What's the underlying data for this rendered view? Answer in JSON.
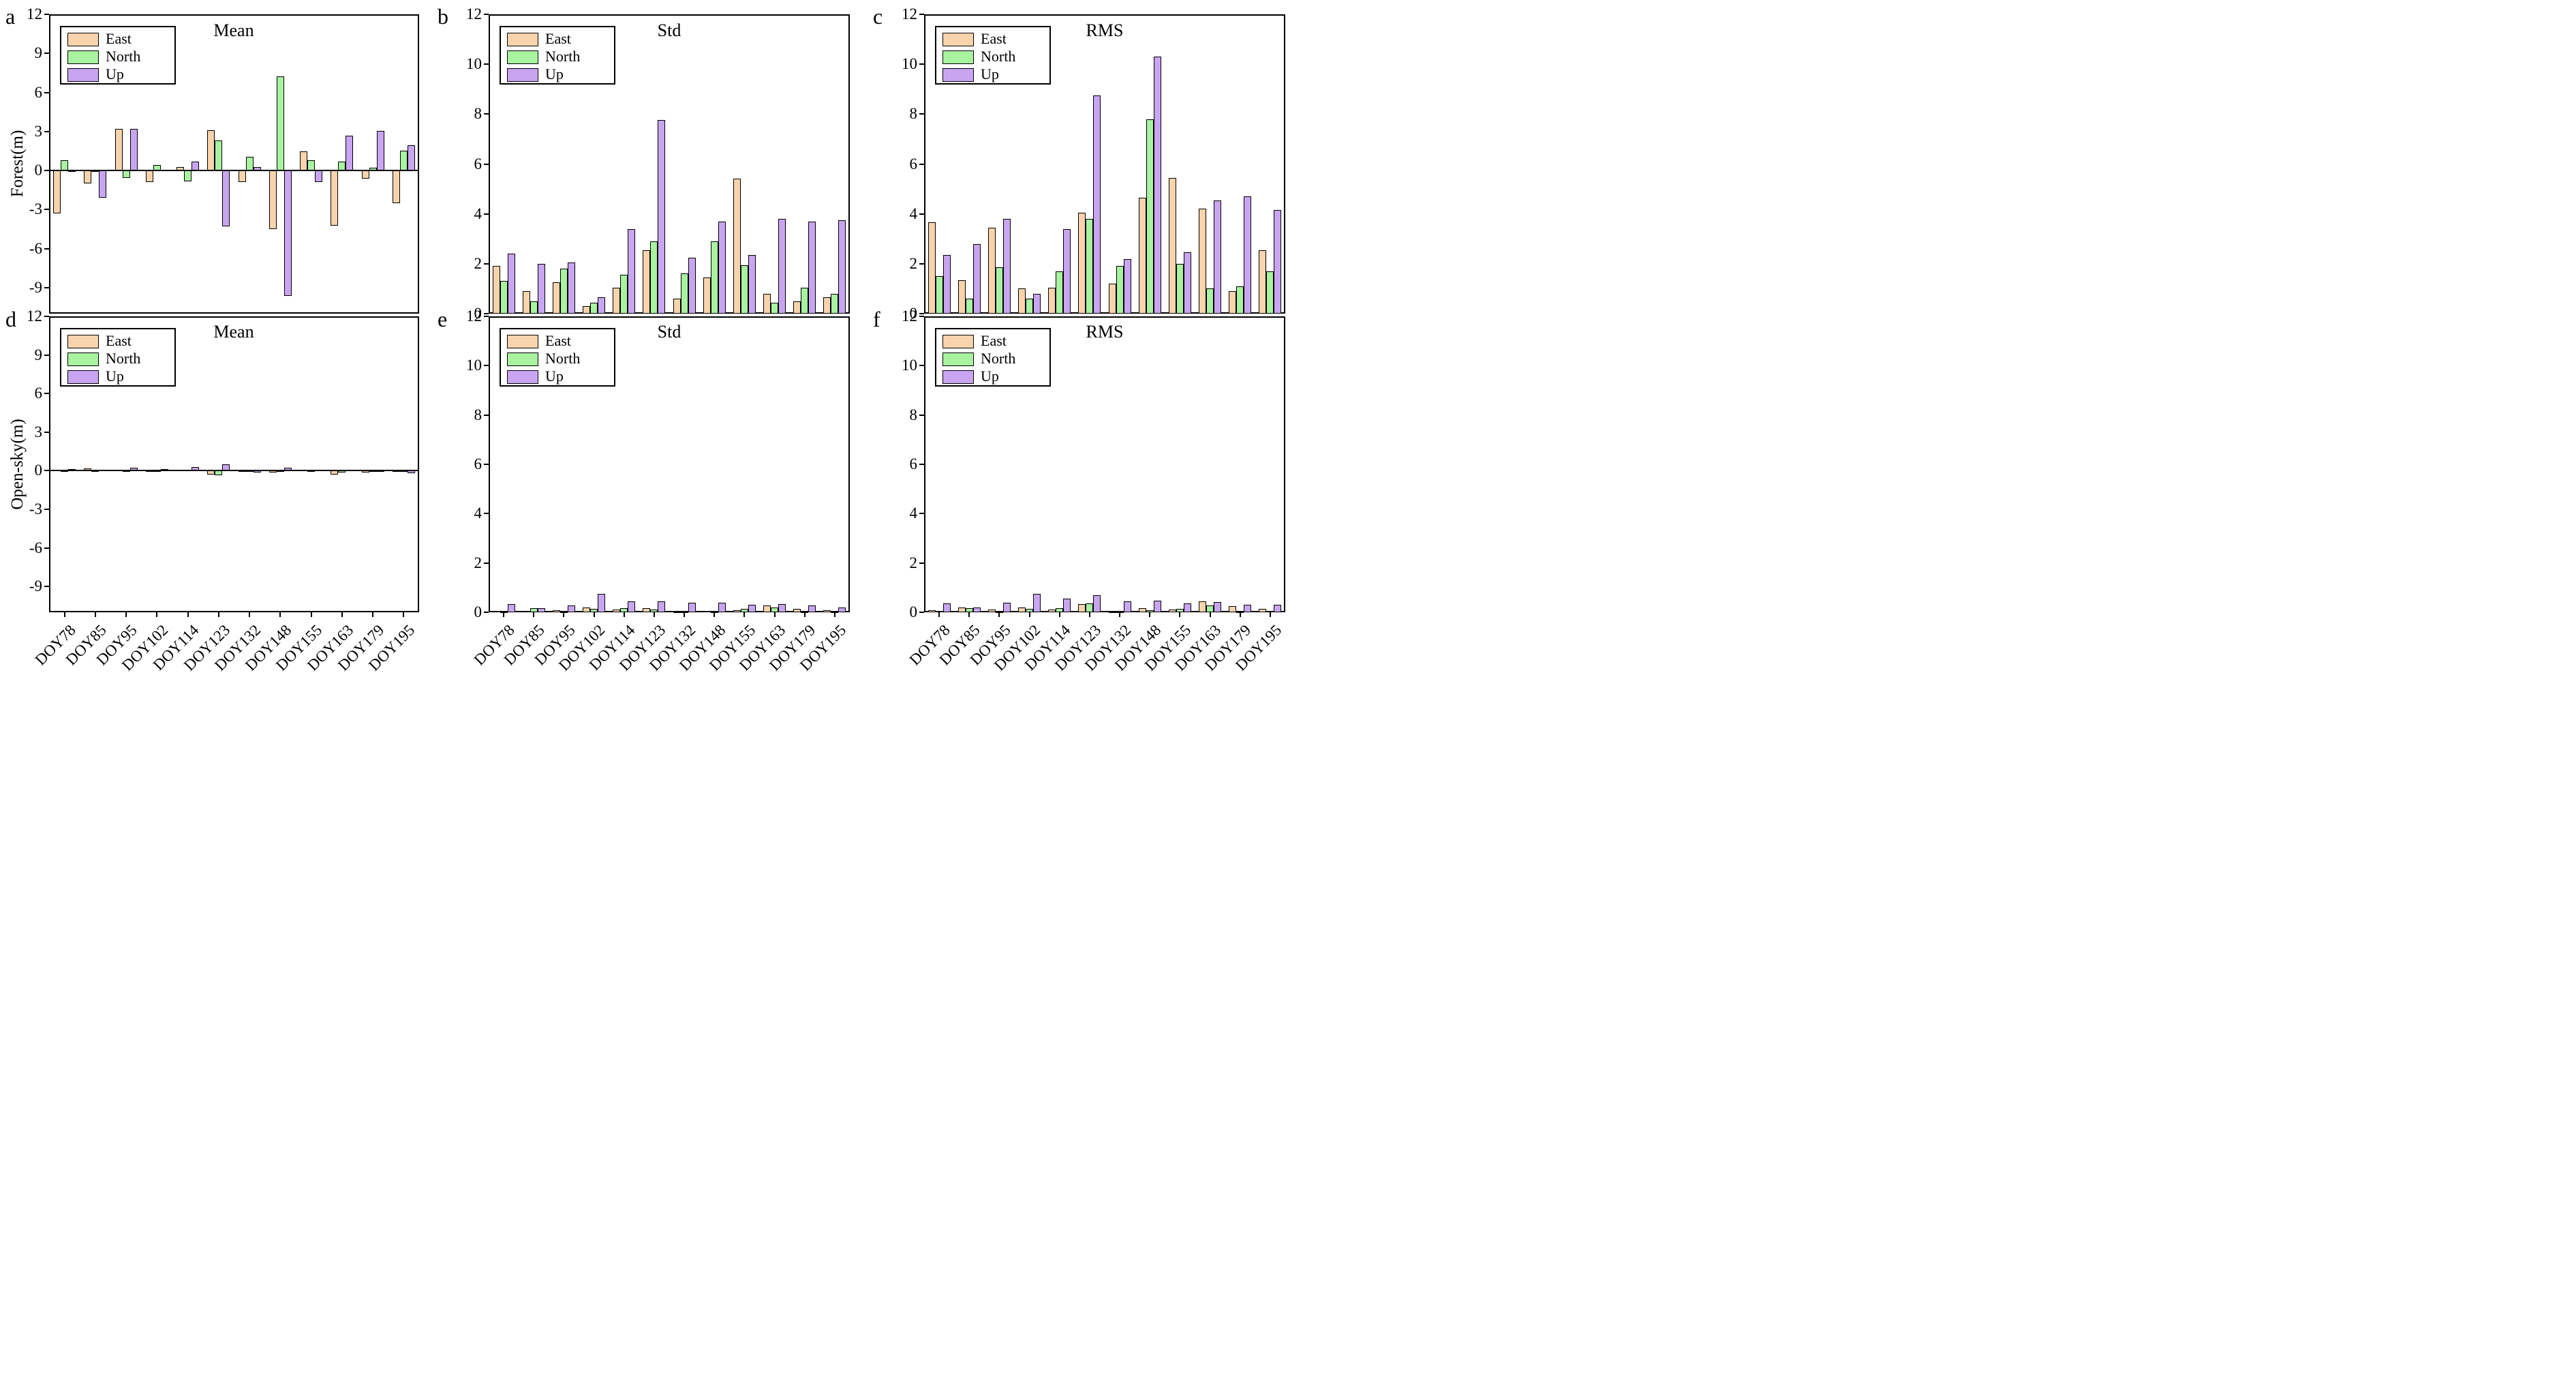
{
  "figure": {
    "legend": {
      "east": "East",
      "north": "North",
      "up": "Up"
    },
    "colors": {
      "east": "#F9D3AB",
      "north": "#A8F2A0",
      "up": "#C9A5F1",
      "border": "#000000"
    }
  },
  "chart_data": [
    {
      "type": "bar",
      "letter": "a",
      "title": "Mean",
      "ylabel": "Forest(m)",
      "ylim": [
        -11,
        12
      ],
      "yticks": [
        12,
        9,
        6,
        3,
        0,
        -3,
        -6,
        -9
      ],
      "grid": false,
      "categories": [
        "DOY78",
        "DOY85",
        "DOY95",
        "DOY102",
        "DOY114",
        "DOY123",
        "DOY132",
        "DOY148",
        "DOY155",
        "DOY163",
        "DOY179",
        "DOY195"
      ],
      "series": [
        {
          "name": "East",
          "values": [
            -3.3,
            -1.0,
            3.2,
            -0.9,
            0.25,
            3.1,
            -0.9,
            -4.5,
            1.45,
            -4.25,
            -0.65,
            -2.5
          ]
        },
        {
          "name": "North",
          "values": [
            0.8,
            -0.05,
            -0.6,
            0.4,
            -0.85,
            2.3,
            1.05,
            7.25,
            0.8,
            0.7,
            0.2,
            1.5
          ]
        },
        {
          "name": "Up",
          "values": [
            -0.05,
            -2.1,
            3.2,
            0.07,
            0.7,
            -4.3,
            0.27,
            -9.65,
            -0.9,
            2.65,
            3.05,
            1.95
          ]
        }
      ]
    },
    {
      "type": "bar",
      "letter": "b",
      "title": "Std",
      "ylabel": "",
      "ylim": [
        0,
        12
      ],
      "yticks": [
        12,
        10,
        8,
        6,
        4,
        2,
        0
      ],
      "grid": false,
      "categories": [
        "DOY78",
        "DOY85",
        "DOY95",
        "DOY102",
        "DOY114",
        "DOY123",
        "DOY132",
        "DOY148",
        "DOY155",
        "DOY163",
        "DOY179",
        "DOY195"
      ],
      "series": [
        {
          "name": "East",
          "values": [
            1.9,
            0.9,
            1.25,
            0.3,
            1.05,
            2.55,
            0.6,
            1.45,
            5.4,
            0.8,
            0.5,
            0.65
          ]
        },
        {
          "name": "North",
          "values": [
            1.3,
            0.5,
            1.8,
            0.45,
            1.55,
            2.9,
            1.6,
            2.9,
            1.95,
            0.45,
            1.05,
            0.8
          ]
        },
        {
          "name": "Up",
          "values": [
            2.4,
            2.0,
            2.05,
            0.65,
            3.4,
            7.75,
            2.25,
            3.7,
            2.35,
            3.8,
            3.7,
            3.75
          ]
        }
      ]
    },
    {
      "type": "bar",
      "letter": "c",
      "title": "RMS",
      "ylabel": "",
      "ylim": [
        0,
        12
      ],
      "yticks": [
        12,
        10,
        8,
        6,
        4,
        2,
        0
      ],
      "grid": false,
      "categories": [
        "DOY78",
        "DOY85",
        "DOY95",
        "DOY102",
        "DOY114",
        "DOY123",
        "DOY132",
        "DOY148",
        "DOY155",
        "DOY163",
        "DOY179",
        "DOY195"
      ],
      "series": [
        {
          "name": "East",
          "values": [
            3.65,
            1.35,
            3.45,
            1.0,
            1.05,
            4.05,
            1.2,
            4.65,
            5.45,
            4.2,
            0.9,
            2.55
          ]
        },
        {
          "name": "North",
          "values": [
            1.5,
            0.6,
            1.85,
            0.6,
            1.7,
            3.8,
            1.9,
            7.8,
            2.0,
            1.0,
            1.1,
            1.7
          ]
        },
        {
          "name": "Up",
          "values": [
            2.35,
            2.8,
            3.8,
            0.8,
            3.4,
            8.75,
            2.2,
            10.3,
            2.45,
            4.55,
            4.7,
            4.15
          ]
        }
      ]
    },
    {
      "type": "bar",
      "letter": "d",
      "title": "Mean",
      "ylabel": "Open-sky(m)",
      "ylim": [
        -11,
        12
      ],
      "yticks": [
        12,
        9,
        6,
        3,
        0,
        -3,
        -6,
        -9
      ],
      "grid": false,
      "categories": [
        "DOY78",
        "DOY85",
        "DOY95",
        "DOY102",
        "DOY114",
        "DOY123",
        "DOY132",
        "DOY148",
        "DOY155",
        "DOY163",
        "DOY179",
        "DOY195"
      ],
      "series": [
        {
          "name": "East",
          "values": [
            0.05,
            0.18,
            0.08,
            0.04,
            0.07,
            -0.28,
            -0.05,
            -0.15,
            0.05,
            -0.27,
            -0.15,
            -0.1
          ]
        },
        {
          "name": "North",
          "values": [
            0.03,
            0.03,
            -0.03,
            -0.04,
            0.05,
            -0.35,
            -0.04,
            -0.05,
            0.02,
            -0.13,
            -0.02,
            0.04
          ]
        },
        {
          "name": "Up",
          "values": [
            0.15,
            0.06,
            0.25,
            0.15,
            0.28,
            0.5,
            -0.15,
            0.24,
            0.05,
            0.09,
            0.02,
            -0.17
          ]
        }
      ]
    },
    {
      "type": "bar",
      "letter": "e",
      "title": "Std",
      "ylabel": "",
      "ylim": [
        0,
        12
      ],
      "yticks": [
        12,
        10,
        8,
        6,
        4,
        2,
        0
      ],
      "grid": false,
      "categories": [
        "DOY78",
        "DOY85",
        "DOY95",
        "DOY102",
        "DOY114",
        "DOY123",
        "DOY132",
        "DOY148",
        "DOY155",
        "DOY163",
        "DOY179",
        "DOY195"
      ],
      "series": [
        {
          "name": "East",
          "values": [
            0.06,
            0.05,
            0.08,
            0.18,
            0.1,
            0.16,
            0.03,
            0.05,
            0.09,
            0.27,
            0.15,
            0.07
          ]
        },
        {
          "name": "North",
          "values": [
            0.04,
            0.16,
            0.02,
            0.15,
            0.16,
            0.1,
            0.02,
            0.04,
            0.15,
            0.19,
            0.02,
            0.04
          ]
        },
        {
          "name": "Up",
          "values": [
            0.33,
            0.17,
            0.29,
            0.74,
            0.45,
            0.43,
            0.4,
            0.4,
            0.31,
            0.34,
            0.29,
            0.18
          ]
        }
      ]
    },
    {
      "type": "bar",
      "letter": "f",
      "title": "RMS",
      "ylabel": "",
      "ylim": [
        0,
        12
      ],
      "yticks": [
        12,
        10,
        8,
        6,
        4,
        2,
        0
      ],
      "grid": false,
      "categories": [
        "DOY78",
        "DOY85",
        "DOY95",
        "DOY102",
        "DOY114",
        "DOY123",
        "DOY132",
        "DOY148",
        "DOY155",
        "DOY163",
        "DOY179",
        "DOY195"
      ],
      "series": [
        {
          "name": "East",
          "values": [
            0.08,
            0.19,
            0.11,
            0.18,
            0.12,
            0.32,
            0.04,
            0.16,
            0.12,
            0.44,
            0.26,
            0.15
          ]
        },
        {
          "name": "North",
          "values": [
            0.05,
            0.16,
            0.03,
            0.15,
            0.17,
            0.36,
            0.03,
            0.09,
            0.14,
            0.28,
            0.04,
            0.05
          ]
        },
        {
          "name": "Up",
          "values": [
            0.36,
            0.2,
            0.38,
            0.76,
            0.55,
            0.7,
            0.45,
            0.48,
            0.36,
            0.42,
            0.31,
            0.3
          ]
        }
      ]
    }
  ]
}
